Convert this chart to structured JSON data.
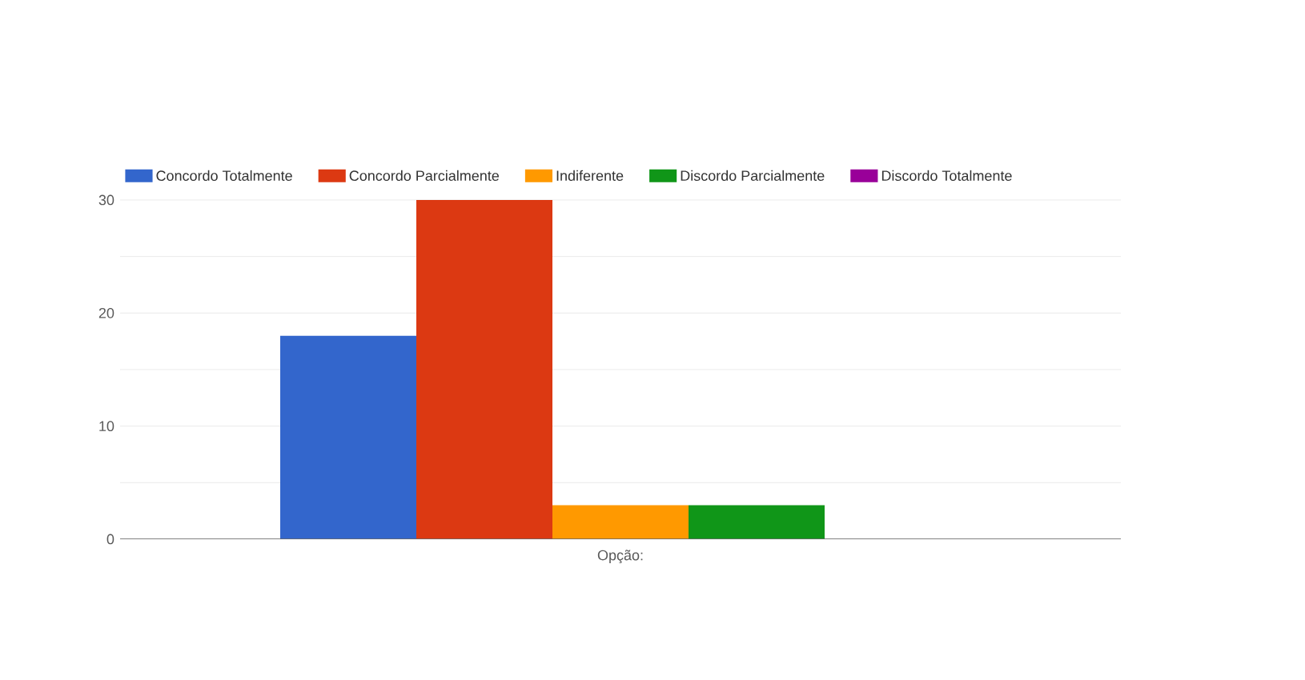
{
  "chart_data": {
    "type": "bar",
    "categories": [
      null
    ],
    "xlabel": "Opção:",
    "series": [
      {
        "name": "Concordo Totalmente",
        "color": "#3366cc",
        "values": [
          18
        ]
      },
      {
        "name": "Concordo Parcialmente",
        "color": "#dc3912",
        "values": [
          30
        ]
      },
      {
        "name": "Indiferente",
        "color": "#ff9900",
        "values": [
          3
        ]
      },
      {
        "name": "Discordo Parcialmente",
        "color": "#109618",
        "values": [
          3
        ]
      },
      {
        "name": "Discordo Totalmente",
        "color": "#990099",
        "values": [
          0
        ]
      }
    ],
    "ylim": [
      0,
      30
    ],
    "yticks": [
      0,
      {
        "value": 5,
        "label": null
      },
      10,
      {
        "value": 15,
        "label": null
      },
      20,
      {
        "value": 25,
        "label": null
      },
      30
    ],
    "grid": true,
    "legend": "top"
  }
}
